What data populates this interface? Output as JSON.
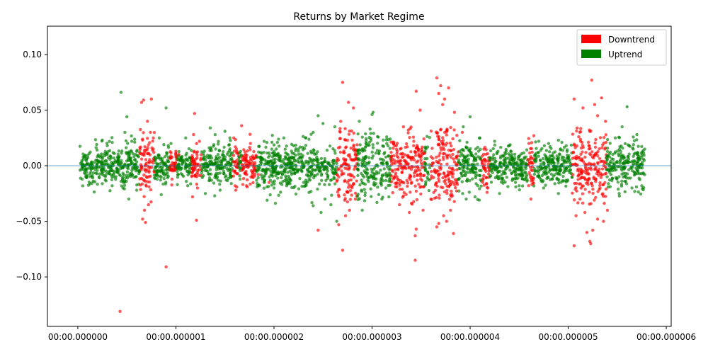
{
  "chart_data": {
    "type": "scatter",
    "title": "Returns by Market Regime",
    "xlabel": "",
    "ylabel": "",
    "x_unit": "seconds",
    "xlim": [
      -3.1e-07,
      6.05e-06
    ],
    "ylim": [
      -0.1445,
      0.1255
    ],
    "x_ticks": [
      {
        "value": 0,
        "label": "00:00.000000"
      },
      {
        "value": 1e-06,
        "label": "00:00.000001"
      },
      {
        "value": 2e-06,
        "label": "00:00.000002"
      },
      {
        "value": 3e-06,
        "label": "00:00.000003"
      },
      {
        "value": 4e-06,
        "label": "00:00.000004"
      },
      {
        "value": 5e-06,
        "label": "00:00.000005"
      },
      {
        "value": 6e-06,
        "label": "00:00.000006"
      }
    ],
    "y_ticks": [
      {
        "value": 0.1,
        "label": "0.10"
      },
      {
        "value": 0.05,
        "label": "0.05"
      },
      {
        "value": 0.0,
        "label": "0.00"
      },
      {
        "value": -0.05,
        "label": "−0.05"
      },
      {
        "value": -0.1,
        "label": "−0.10"
      }
    ],
    "grid": false,
    "reference_line": {
      "y": 0,
      "color": "#1f77b4"
    },
    "legend": {
      "placement": "top-right"
    },
    "series": [
      {
        "name": "Downtrend",
        "color": "#ff0000",
        "points": [
          [
            4.3e-07,
            -0.131
          ],
          [
            6.5e-07,
            0.057
          ],
          [
            6.7e-07,
            0.059
          ],
          [
            7.5e-07,
            0.06
          ],
          [
            6.6e-07,
            -0.048
          ],
          [
            6.9e-07,
            -0.051
          ],
          [
            7.1e-07,
            0.04
          ],
          [
            7.4e-07,
            0.03
          ],
          [
            6.8e-07,
            -0.04
          ],
          [
            7.7e-07,
            0.025
          ],
          [
            7.2e-07,
            -0.035
          ],
          [
            9e-07,
            -0.091
          ],
          [
            1e-06,
            0.013
          ],
          [
            9.6e-07,
            -0.012
          ],
          [
            1.03e-06,
            0.01
          ],
          [
            1.19e-06,
            0.047
          ],
          [
            1.21e-06,
            -0.049
          ],
          [
            1.18e-06,
            0.028
          ],
          [
            1.17e-06,
            -0.028
          ],
          [
            1.24e-06,
            0.022
          ],
          [
            1.22e-06,
            -0.02
          ],
          [
            1.59e-06,
            0.025
          ],
          [
            1.67e-06,
            0.036
          ],
          [
            1.76e-06,
            0.02
          ],
          [
            1.61e-06,
            -0.022
          ],
          [
            1.72e-06,
            -0.018
          ],
          [
            1.84e-06,
            -0.008
          ],
          [
            1.95e-06,
            -0.015
          ],
          [
            2.45e-06,
            -0.058
          ],
          [
            2.66e-06,
            -0.053
          ],
          [
            2.7e-06,
            0.075
          ],
          [
            2.7e-06,
            -0.076
          ],
          [
            2.76e-06,
            0.057
          ],
          [
            2.81e-06,
            0.052
          ],
          [
            2.68e-06,
            0.04
          ],
          [
            2.73e-06,
            -0.045
          ],
          [
            2.77e-06,
            -0.04
          ],
          [
            2.83e-06,
            -0.03
          ],
          [
            3.45e-06,
            0.067
          ],
          [
            3.45e-06,
            -0.057
          ],
          [
            3.44e-06,
            -0.063
          ],
          [
            3.44e-06,
            -0.085
          ],
          [
            3.49e-06,
            0.05
          ],
          [
            3.52e-06,
            -0.04
          ],
          [
            3.32e-06,
            0.035
          ],
          [
            3.28e-06,
            -0.035
          ],
          [
            3.38e-06,
            -0.042
          ],
          [
            3.66e-06,
            0.079
          ],
          [
            3.7e-06,
            0.072
          ],
          [
            3.68e-06,
            0.065
          ],
          [
            3.74e-06,
            0.06
          ],
          [
            3.78e-06,
            0.07
          ],
          [
            3.84e-06,
            0.048
          ],
          [
            3.72e-06,
            0.055
          ],
          [
            3.66e-06,
            -0.055
          ],
          [
            3.68e-06,
            -0.052
          ],
          [
            3.73e-06,
            -0.045
          ],
          [
            3.76e-06,
            -0.05
          ],
          [
            3.83e-06,
            -0.061
          ],
          [
            3.6e-06,
            -0.03
          ],
          [
            3.8e-06,
            -0.04
          ],
          [
            3.92e-06,
            0.03
          ],
          [
            4.14e-06,
            0.015
          ],
          [
            4.18e-06,
            -0.02
          ],
          [
            4.6e-06,
            0.02
          ],
          [
            4.65e-06,
            0.027
          ],
          [
            4.62e-06,
            -0.03
          ],
          [
            4.64e-06,
            -0.015
          ],
          [
            5.06e-06,
            0.06
          ],
          [
            5.06e-06,
            -0.072
          ],
          [
            5.08e-06,
            -0.045
          ],
          [
            5.09e-06,
            0.034
          ],
          [
            5.15e-06,
            0.052
          ],
          [
            5.19e-06,
            -0.06
          ],
          [
            5.24e-06,
            0.077
          ],
          [
            5.22e-06,
            -0.068
          ],
          [
            5.23e-06,
            -0.07
          ],
          [
            5.25e-06,
            -0.058
          ],
          [
            5.27e-06,
            0.055
          ],
          [
            5.3e-06,
            0.045
          ],
          [
            5.3e-06,
            -0.048
          ],
          [
            5.34e-06,
            0.061
          ],
          [
            5.36e-06,
            -0.05
          ],
          [
            5.38e-06,
            0.04
          ],
          [
            5.4e-06,
            -0.04
          ],
          [
            5.12e-06,
            -0.03
          ],
          [
            5.17e-06,
            -0.042
          ]
        ]
      },
      {
        "name": "Uptrend",
        "color": "#008000",
        "points": [
          [
            4.4e-07,
            0.066
          ],
          [
            5e-07,
            0.044
          ],
          [
            4.8e-07,
            0.03
          ],
          [
            5.2e-07,
            -0.03
          ],
          [
            4.6e-07,
            -0.02
          ],
          [
            3e-07,
            0.018
          ],
          [
            2.5e-07,
            0.023
          ],
          [
            3.5e-07,
            -0.018
          ],
          [
            5.5e-07,
            0.022
          ],
          [
            6e-07,
            -0.022
          ],
          [
            8.3e-07,
            0.025
          ],
          [
            9e-07,
            0.052
          ],
          [
            8.5e-07,
            -0.026
          ],
          [
            9.5e-07,
            0.02
          ],
          [
            1.1e-06,
            0.025
          ],
          [
            1.12e-06,
            -0.018
          ],
          [
            1.35e-06,
            0.034
          ],
          [
            1.4e-06,
            0.028
          ],
          [
            1.3e-06,
            -0.025
          ],
          [
            1.45e-06,
            -0.022
          ],
          [
            1.5e-06,
            0.031
          ],
          [
            1.55e-06,
            0.025
          ],
          [
            1.9e-06,
            0.022
          ],
          [
            1.93e-06,
            -0.031
          ],
          [
            2.1e-06,
            0.025
          ],
          [
            2e-06,
            -0.02
          ],
          [
            2.2e-06,
            0.018
          ],
          [
            2.4e-06,
            -0.036
          ],
          [
            2.45e-06,
            0.045
          ],
          [
            2.5e-06,
            0.038
          ],
          [
            2.4e-06,
            0.03
          ],
          [
            2.52e-06,
            -0.03
          ],
          [
            2.58e-06,
            -0.035
          ],
          [
            2.48e-06,
            -0.042
          ],
          [
            2.62e-06,
            0.035
          ],
          [
            2.64e-06,
            -0.05
          ],
          [
            2.87e-06,
            0.04
          ],
          [
            2.9e-06,
            -0.04
          ],
          [
            3e-06,
            0.046
          ],
          [
            3.01e-06,
            0.048
          ],
          [
            2.98e-06,
            0.033
          ],
          [
            3.05e-06,
            -0.033
          ],
          [
            3.1e-06,
            -0.03
          ],
          [
            3.15e-06,
            0.02
          ],
          [
            3.93e-06,
            0.035
          ],
          [
            4e-06,
            0.044
          ],
          [
            3.96e-06,
            -0.03
          ],
          [
            4.05e-06,
            -0.028
          ],
          [
            4.1e-06,
            0.025
          ],
          [
            4.25e-06,
            0.022
          ],
          [
            4.3e-06,
            -0.025
          ],
          [
            4.4e-06,
            0.018
          ],
          [
            4.5e-06,
            -0.018
          ],
          [
            4.7e-06,
            0.022
          ],
          [
            4.75e-06,
            -0.02
          ],
          [
            4.8e-06,
            0.02
          ],
          [
            4.9e-06,
            -0.025
          ],
          [
            4.98e-06,
            0.018
          ],
          [
            5.48e-06,
            0.025
          ],
          [
            5.52e-06,
            -0.025
          ],
          [
            5.55e-06,
            0.035
          ],
          [
            5.6e-06,
            0.053
          ],
          [
            5.65e-06,
            -0.02
          ],
          [
            5.7e-06,
            0.028
          ],
          [
            5.75e-06,
            -0.018
          ],
          [
            5.78e-06,
            0.015
          ]
        ]
      }
    ],
    "dense_regions": [
      {
        "series": "Uptrend",
        "x_range": [
          2e-08,
          6.3e-07
        ],
        "spread": 0.009
      },
      {
        "series": "Downtrend",
        "x_range": [
          6.3e-07,
          7.8e-07
        ],
        "spread": 0.015
      },
      {
        "series": "Uptrend",
        "x_range": [
          7.8e-07,
          9.4e-07
        ],
        "spread": 0.007
      },
      {
        "series": "Downtrend",
        "x_range": [
          9.4e-07,
          1.01e-06
        ],
        "spread": 0.007
      },
      {
        "series": "Uptrend",
        "x_range": [
          1.01e-06,
          1.16e-06
        ],
        "spread": 0.007
      },
      {
        "series": "Downtrend",
        "x_range": [
          1.16e-06,
          1.26e-06
        ],
        "spread": 0.008
      },
      {
        "series": "Uptrend",
        "x_range": [
          1.26e-06,
          1.58e-06
        ],
        "spread": 0.009
      },
      {
        "series": "Downtrend",
        "x_range": [
          1.58e-06,
          1.64e-06
        ],
        "spread": 0.009
      },
      {
        "series": "Uptrend",
        "x_range": [
          1.64e-06,
          1.67e-06
        ],
        "spread": 0.008
      },
      {
        "series": "Downtrend",
        "x_range": [
          1.67e-06,
          1.82e-06
        ],
        "spread": 0.009
      },
      {
        "series": "Uptrend",
        "x_range": [
          1.82e-06,
          2.64e-06
        ],
        "spread": 0.01
      },
      {
        "series": "Downtrend",
        "x_range": [
          2.64e-06,
          2.85e-06
        ],
        "spread": 0.018
      },
      {
        "series": "Uptrend",
        "x_range": [
          2.85e-06,
          3.19e-06
        ],
        "spread": 0.014
      },
      {
        "series": "Downtrend",
        "x_range": [
          3.19e-06,
          3.54e-06
        ],
        "spread": 0.014
      },
      {
        "series": "Uptrend",
        "x_range": [
          3.54e-06,
          3.59e-06
        ],
        "spread": 0.012
      },
      {
        "series": "Downtrend",
        "x_range": [
          3.59e-06,
          3.88e-06
        ],
        "spread": 0.022
      },
      {
        "series": "Uptrend",
        "x_range": [
          3.88e-06,
          4.12e-06
        ],
        "spread": 0.01
      },
      {
        "series": "Downtrend",
        "x_range": [
          4.12e-06,
          4.2e-06
        ],
        "spread": 0.01
      },
      {
        "series": "Uptrend",
        "x_range": [
          4.2e-06,
          4.59e-06
        ],
        "spread": 0.008
      },
      {
        "series": "Downtrend",
        "x_range": [
          4.59e-06,
          4.65e-06
        ],
        "spread": 0.009
      },
      {
        "series": "Uptrend",
        "x_range": [
          4.65e-06,
          5.04e-06
        ],
        "spread": 0.008
      },
      {
        "series": "Downtrend",
        "x_range": [
          5.04e-06,
          5.39e-06
        ],
        "spread": 0.016
      },
      {
        "series": "Uptrend",
        "x_range": [
          5.39e-06,
          5.78e-06
        ],
        "spread": 0.01
      }
    ]
  }
}
